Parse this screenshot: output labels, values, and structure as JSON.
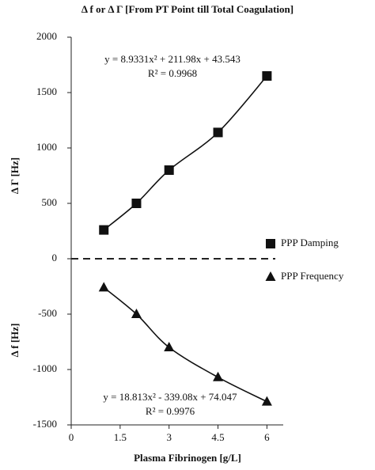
{
  "chart_data": {
    "type": "scatter",
    "title": "Δ f or Δ Γ [From PT Point till Total Coagulation]",
    "x_label": "Plasma Fibrinogen [g/L]",
    "y_label_upper": "Δ Γ [Hz]",
    "y_label_lower": "Δ f [Hz]",
    "annotations": [
      "y = 8.9331x² + 211.98x + 43.543",
      "R² = 0.9968",
      "y = 18.813x² - 339.08x + 74.047",
      "R² = 0.9976"
    ],
    "xlim": [
      0,
      6.5
    ],
    "xticks": [
      0,
      1.5,
      3,
      4.5,
      6
    ],
    "ylim": [
      -1500,
      2000
    ],
    "yticks": [
      -1500,
      -1000,
      -500,
      0,
      500,
      1000,
      1500,
      2000
    ],
    "legend": "right",
    "series": [
      {
        "name": "PPP Damping",
        "color": "#111111",
        "marker": "square",
        "x": [
          1,
          2,
          3,
          4.5,
          6
        ],
        "values": [
          260,
          500,
          800,
          1140,
          1650
        ]
      },
      {
        "name": "PPP Frequency",
        "color": "#111111",
        "marker": "triangle",
        "x": [
          1,
          2,
          3,
          4.5,
          6
        ],
        "values": [
          -260,
          -500,
          -800,
          -1070,
          -1290
        ]
      }
    ]
  }
}
